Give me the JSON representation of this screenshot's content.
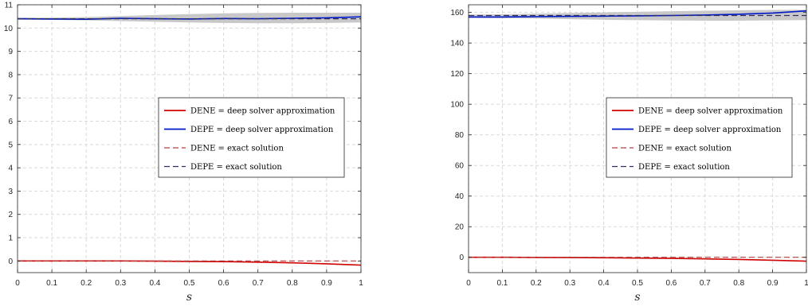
{
  "chart_data": [
    {
      "type": "line",
      "xlabel": "s",
      "ylabel": "",
      "xlim": [
        0,
        1
      ],
      "ylim": [
        -0.5,
        11
      ],
      "xticks": [
        "0",
        "0.1",
        "0.2",
        "0.3",
        "0.4",
        "0.5",
        "0.6",
        "0.7",
        "0.8",
        "0.9",
        "1"
      ],
      "yticks": [
        "0",
        "1",
        "2",
        "3",
        "4",
        "5",
        "6",
        "7",
        "8",
        "9",
        "10",
        "11"
      ],
      "grid": true,
      "legend_placement": "center-right",
      "band": {
        "x": [
          0,
          0.1,
          0.2,
          0.3,
          0.4,
          0.5,
          0.6,
          0.7,
          0.8,
          0.9,
          1.0
        ],
        "lower": [
          10.36,
          10.35,
          10.33,
          10.3,
          10.27,
          10.24,
          10.22,
          10.21,
          10.21,
          10.22,
          10.24
        ],
        "upper": [
          10.44,
          10.45,
          10.47,
          10.52,
          10.56,
          10.6,
          10.63,
          10.65,
          10.66,
          10.66,
          10.66
        ]
      },
      "series": [
        {
          "name": "DENE = deep solver approximation",
          "color": "#d00000",
          "dash": "solid",
          "x": [
            0,
            0.1,
            0.2,
            0.3,
            0.4,
            0.5,
            0.6,
            0.7,
            0.8,
            0.9,
            1.0
          ],
          "y": [
            0.0,
            0.0,
            0.0,
            0.0,
            -0.01,
            -0.02,
            -0.03,
            -0.05,
            -0.08,
            -0.12,
            -0.18
          ]
        },
        {
          "name": "DEPE = deep solver approximation",
          "color": "#0018c8",
          "dash": "solid",
          "x": [
            0,
            0.1,
            0.2,
            0.3,
            0.4,
            0.5,
            0.6,
            0.7,
            0.8,
            0.9,
            1.0
          ],
          "y": [
            10.4,
            10.39,
            10.38,
            10.42,
            10.4,
            10.39,
            10.41,
            10.4,
            10.42,
            10.44,
            10.48
          ]
        },
        {
          "name": "DENE = exact solution",
          "color": "#b04040",
          "dash": "dashed",
          "x": [
            0,
            0.1,
            0.2,
            0.3,
            0.4,
            0.5,
            0.6,
            0.7,
            0.8,
            0.9,
            1.0
          ],
          "y": [
            0,
            0,
            0,
            0,
            0,
            0,
            0,
            0,
            0,
            0,
            0
          ]
        },
        {
          "name": "DEPE = exact solution",
          "color": "#303060",
          "dash": "dashed",
          "x": [
            0,
            0.1,
            0.2,
            0.3,
            0.4,
            0.5,
            0.6,
            0.7,
            0.8,
            0.9,
            1.0
          ],
          "y": [
            10.4,
            10.4,
            10.4,
            10.4,
            10.4,
            10.4,
            10.4,
            10.4,
            10.4,
            10.4,
            10.4
          ]
        }
      ]
    },
    {
      "type": "line",
      "xlabel": "s",
      "ylabel": "",
      "xlim": [
        0,
        1
      ],
      "ylim": [
        -10,
        165
      ],
      "xticks": [
        "0",
        "0.1",
        "0.2",
        "0.3",
        "0.4",
        "0.5",
        "0.6",
        "0.7",
        "0.8",
        "0.9",
        "1"
      ],
      "yticks": [
        "0",
        "20",
        "40",
        "60",
        "80",
        "100",
        "120",
        "140",
        "160"
      ],
      "grid": true,
      "legend_placement": "center-right",
      "band": {
        "x": [
          0,
          0.1,
          0.2,
          0.3,
          0.4,
          0.5,
          0.6,
          0.7,
          0.8,
          0.9,
          1.0
        ],
        "lower": [
          156.5,
          156.3,
          156.0,
          155.6,
          155.2,
          154.9,
          154.7,
          154.6,
          154.6,
          154.8,
          155.0
        ],
        "upper": [
          158.5,
          158.8,
          159.2,
          159.6,
          160.0,
          160.4,
          160.8,
          161.1,
          161.4,
          161.6,
          161.8
        ]
      },
      "series": [
        {
          "name": "DENE = deep solver approximation",
          "color": "#d00000",
          "dash": "solid",
          "x": [
            0,
            0.1,
            0.2,
            0.3,
            0.4,
            0.5,
            0.6,
            0.7,
            0.8,
            0.9,
            1.0
          ],
          "y": [
            0.0,
            0.0,
            -0.1,
            -0.2,
            -0.3,
            -0.5,
            -0.7,
            -1.0,
            -1.4,
            -1.9,
            -2.5
          ]
        },
        {
          "name": "DEPE = deep solver approximation",
          "color": "#0018c8",
          "dash": "solid",
          "x": [
            0,
            0.1,
            0.2,
            0.3,
            0.4,
            0.5,
            0.6,
            0.7,
            0.8,
            0.9,
            1.0
          ],
          "y": [
            157.0,
            157.0,
            157.2,
            157.4,
            157.6,
            157.8,
            158.0,
            158.3,
            158.8,
            159.6,
            161.0
          ]
        },
        {
          "name": "DENE = exact solution",
          "color": "#b04040",
          "dash": "dashed",
          "x": [
            0,
            0.1,
            0.2,
            0.3,
            0.4,
            0.5,
            0.6,
            0.7,
            0.8,
            0.9,
            1.0
          ],
          "y": [
            0,
            0,
            0,
            0,
            0,
            0,
            0,
            0,
            0,
            0,
            0
          ]
        },
        {
          "name": "DEPE = exact solution",
          "color": "#303060",
          "dash": "dashed",
          "x": [
            0,
            0.1,
            0.2,
            0.3,
            0.4,
            0.5,
            0.6,
            0.7,
            0.8,
            0.9,
            1.0
          ],
          "y": [
            158,
            158,
            158,
            158,
            158,
            158,
            158,
            158,
            158,
            158,
            158
          ]
        }
      ]
    }
  ]
}
